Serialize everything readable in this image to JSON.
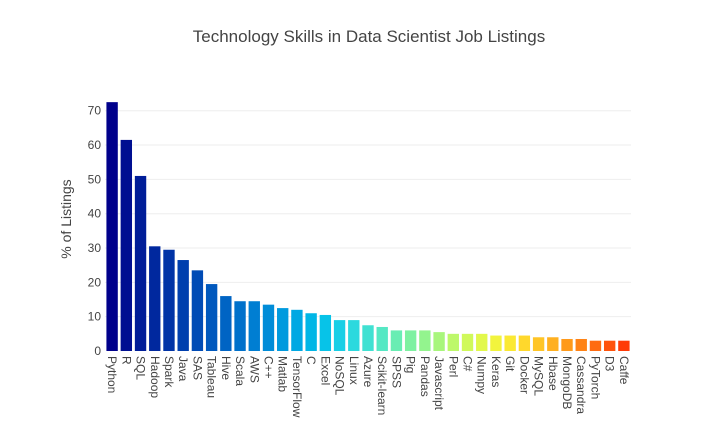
{
  "chart_data": {
    "type": "bar",
    "title": "Technology Skills in Data Scientist Job Listings",
    "xlabel": "",
    "ylabel": "% of Listings",
    "ylim": [
      0,
      74
    ],
    "yticks": [
      0,
      10,
      20,
      30,
      40,
      50,
      60,
      70
    ],
    "grid": true,
    "legend": "none",
    "categories": [
      "Python",
      "R",
      "SQL",
      "Hadoop",
      "Spark",
      "Java",
      "SAS",
      "Tableau",
      "Hive",
      "Scala",
      "AWS",
      "C++",
      "Matlab",
      "TensorFlow",
      "C",
      "Excel",
      "NoSQL",
      "Linux",
      "Azure",
      "Scikit-learn",
      "SPSS",
      "Pig",
      "Pandas",
      "Javascript",
      "Perl",
      "C#",
      "Numpy",
      "Keras",
      "Git",
      "Docker",
      "MySQL",
      "Hbase",
      "MongoDB",
      "Cassandra",
      "PyTorch",
      "D3",
      "Caffe"
    ],
    "values": [
      72.5,
      61.5,
      51.0,
      30.5,
      29.5,
      26.5,
      23.5,
      19.5,
      16.0,
      14.5,
      14.5,
      13.5,
      12.5,
      12.0,
      11.0,
      10.5,
      9.0,
      9.0,
      7.5,
      7.0,
      6.0,
      6.0,
      6.0,
      5.5,
      5.0,
      5.0,
      5.0,
      4.5,
      4.5,
      4.5,
      4.0,
      4.0,
      3.5,
      3.5,
      3.0,
      3.0,
      3.0
    ],
    "colors": [
      "#00008b",
      "#000f91",
      "#001d98",
      "#00289e",
      "#0033a6",
      "#003fae",
      "#004bb5",
      "#0058bd",
      "#0064c4",
      "#0071cb",
      "#007ed2",
      "#008cd8",
      "#009ade",
      "#00a8e3",
      "#00b6e6",
      "#07c3e8",
      "#18cfe6",
      "#2cd9de",
      "#40e1d2",
      "#55e8c4",
      "#69edb3",
      "#7ef1a1",
      "#93f48e",
      "#a8f67c",
      "#bdf86a",
      "#d0f95a",
      "#e2f84b",
      "#f2f43d",
      "#fbe933",
      "#ffd82c",
      "#ffc526",
      "#ffb020",
      "#ff9a1b",
      "#ff8316",
      "#ff6b11",
      "#ff530c",
      "#ff3b07"
    ]
  }
}
